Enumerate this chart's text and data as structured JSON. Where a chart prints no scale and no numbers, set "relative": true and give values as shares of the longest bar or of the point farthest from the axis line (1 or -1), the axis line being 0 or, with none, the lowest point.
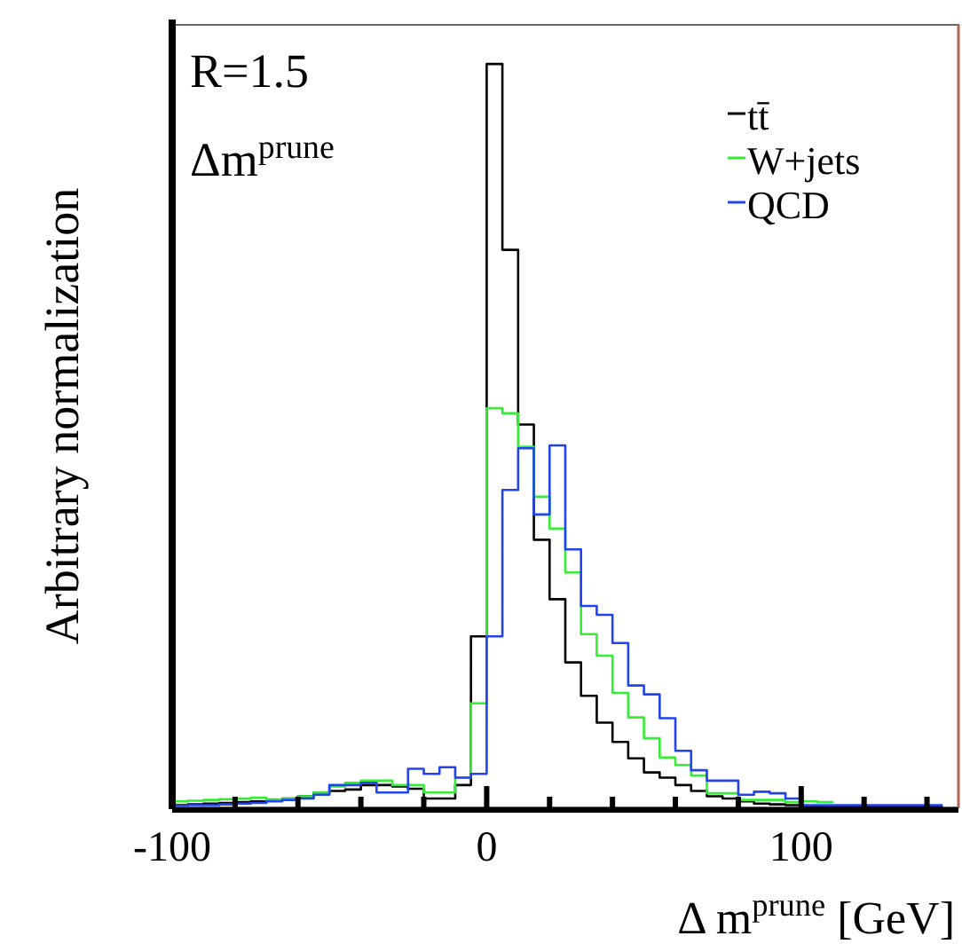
{
  "chart_data": {
    "type": "step",
    "relative": true,
    "xlabel": "Δ m$^{prune}$ [GeV]",
    "ylabel": "Arbitrary normalization",
    "annotations": [
      "R=1.5",
      "Δm$^{prune}$"
    ],
    "x": [
      -100,
      -95,
      -90,
      -85,
      -80,
      -75,
      -70,
      -65,
      -60,
      -55,
      -50,
      -45,
      -40,
      -35,
      -30,
      -25,
      -20,
      -15,
      -10,
      -5,
      0,
      5,
      10,
      15,
      20,
      25,
      30,
      35,
      40,
      45,
      50,
      55,
      60,
      65,
      70,
      75,
      80,
      85,
      90,
      95,
      100,
      105,
      110,
      115,
      120,
      125,
      130,
      135,
      140,
      145
    ],
    "xlim": [
      -100,
      150
    ],
    "xticks": [
      -100,
      {
        "value": -80,
        "label": null
      },
      {
        "value": -60,
        "label": null
      },
      {
        "value": -40,
        "label": null
      },
      {
        "value": -20,
        "label": null
      },
      0,
      {
        "value": 20,
        "label": null
      },
      {
        "value": 40,
        "label": null
      },
      {
        "value": 60,
        "label": null
      },
      {
        "value": 80,
        "label": null
      },
      100,
      {
        "value": 120,
        "label": null
      },
      {
        "value": 140,
        "label": null
      }
    ],
    "series": [
      {
        "name": "tt̄",
        "color": "#000000",
        "values": [
          0.003,
          0.004,
          0.005,
          0.006,
          0.007,
          0.008,
          0.01,
          0.012,
          0.015,
          0.02,
          0.022,
          0.024,
          0.03,
          0.03,
          0.028,
          0.025,
          0.012,
          0.012,
          0.03,
          0.23,
          1.0,
          0.75,
          0.515,
          0.36,
          0.28,
          0.195,
          0.15,
          0.114,
          0.088,
          0.066,
          0.047,
          0.04,
          0.03,
          0.022,
          0.015,
          0.012,
          0.008,
          0.005,
          0.004,
          0.003,
          0.001,
          0.001,
          0.001,
          0.001,
          0.001,
          0.001,
          0.001,
          0.001,
          0.001,
          0.001
        ]
      },
      {
        "name": "W+jets",
        "color": "#33ee33",
        "values": [
          0.008,
          0.009,
          0.01,
          0.011,
          0.012,
          0.013,
          0.01,
          0.012,
          0.015,
          0.02,
          0.028,
          0.033,
          0.036,
          0.036,
          0.03,
          0.03,
          0.02,
          0.02,
          0.04,
          0.14,
          0.537,
          0.53,
          0.485,
          0.418,
          0.375,
          0.316,
          0.233,
          0.204,
          0.154,
          0.121,
          0.093,
          0.067,
          0.057,
          0.043,
          0.019,
          0.019,
          0.01,
          0.01,
          0.01,
          0.007,
          0.008,
          0.007,
          0.006,
          null,
          null,
          null,
          null,
          null,
          null,
          null
        ]
      },
      {
        "name": "QCD",
        "color": "#2244ee",
        "values": [
          0.002,
          0.003,
          0.003,
          0.004,
          0.005,
          0.006,
          0.008,
          0.01,
          0.012,
          0.017,
          0.03,
          0.03,
          0.033,
          0.02,
          0.02,
          0.052,
          0.045,
          0.054,
          0.04,
          0.045,
          0.23,
          0.427,
          0.483,
          0.394,
          0.487,
          0.347,
          0.271,
          0.259,
          0.221,
          0.164,
          0.152,
          0.12,
          0.076,
          0.05,
          0.036,
          0.036,
          0.017,
          0.021,
          0.019,
          0.012,
          0.003,
          0.003,
          0.003,
          0.003,
          0.003,
          0.003,
          0.003,
          0.003,
          0.003,
          0.003
        ]
      }
    ],
    "legend": "top right"
  }
}
